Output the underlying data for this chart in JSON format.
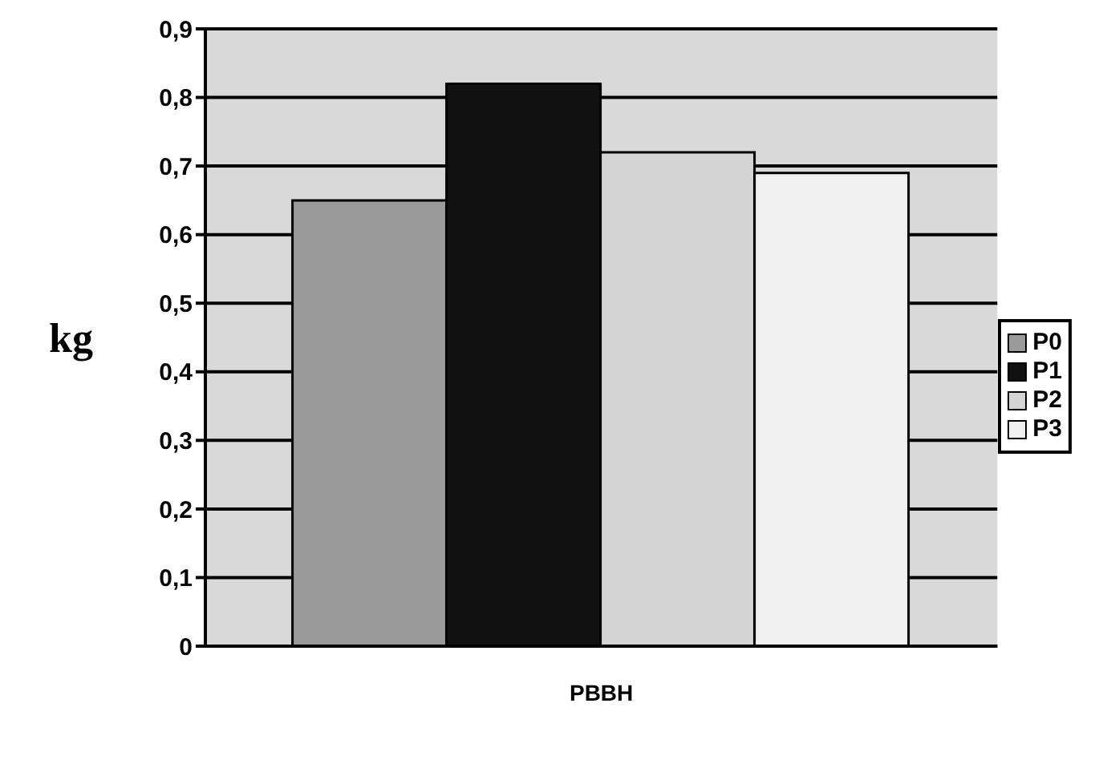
{
  "chart_data": {
    "type": "bar",
    "categories": [
      "PBBH"
    ],
    "ylabel": "kg",
    "series": [
      {
        "name": "P0",
        "color": "#9a9a9a",
        "values": [
          0.65
        ]
      },
      {
        "name": "P1",
        "color": "#111111",
        "values": [
          0.82
        ]
      },
      {
        "name": "P2",
        "color": "#d4d4d4",
        "values": [
          0.72
        ]
      },
      {
        "name": "P3",
        "color": "#f0f0f0",
        "values": [
          0.69
        ]
      }
    ],
    "ylim": [
      0,
      0.9
    ],
    "yticks": [
      {
        "value": 0,
        "label": "0"
      },
      {
        "value": 0.1,
        "label": "0,1"
      },
      {
        "value": 0.2,
        "label": "0,2"
      },
      {
        "value": 0.3,
        "label": "0,3"
      },
      {
        "value": 0.4,
        "label": "0,4"
      },
      {
        "value": 0.5,
        "label": "0,5"
      },
      {
        "value": 0.6,
        "label": "0,6"
      },
      {
        "value": 0.7,
        "label": "0,7"
      },
      {
        "value": 0.8,
        "label": "0,8"
      },
      {
        "value": 0.9,
        "label": "0,9"
      }
    ],
    "grid": "y",
    "legend": "right"
  }
}
